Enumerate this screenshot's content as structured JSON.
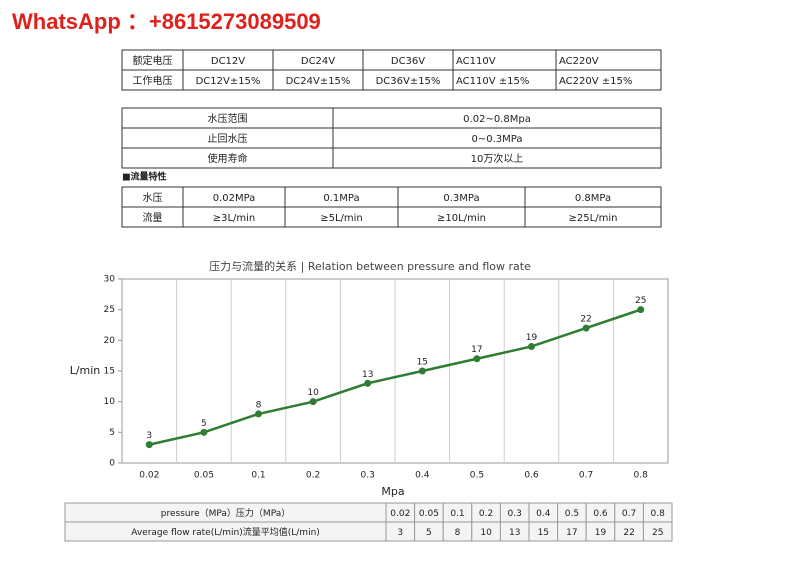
{
  "header": {
    "title": "WhatsApp ：+8615273089509"
  },
  "spec_table": {
    "rows": [
      [
        "额定电压",
        "DC12V",
        "DC24V",
        "DC36V",
        "AC110V",
        "AC220V"
      ],
      [
        "工作电压",
        "DC12V±15%",
        "DC24V±15%",
        "DC36V±15%",
        "AC110V ±15%",
        "AC220V ±15%"
      ]
    ]
  },
  "range_table": {
    "rows": [
      [
        "水压范围",
        "0.02~0.8Mpa"
      ],
      [
        "止回水压",
        "0~0.3MPa"
      ],
      [
        "使用寿命",
        "10万次以上"
      ]
    ]
  },
  "flow_heading": "■流量特性",
  "flow_table": {
    "rows": [
      [
        "水压",
        "0.02MPa",
        "0.1MPa",
        "0.3MPa",
        "0.8MPa"
      ],
      [
        "流量",
        "≥3L/min",
        "≥5L/min",
        "≥10L/min",
        "≥25L/min"
      ]
    ]
  },
  "chart_data": {
    "type": "line",
    "title": "压力与流量的关系 | Relation between pressure and flow rate",
    "x_label": "Mpa",
    "y_label": "L/min",
    "categories": [
      "0.02",
      "0.05",
      "0.1",
      "0.2",
      "0.3",
      "0.4",
      "0.5",
      "0.6",
      "0.7",
      "0.8"
    ],
    "values": [
      3,
      5,
      8,
      10,
      13,
      15,
      17,
      19,
      22,
      25
    ],
    "color": "#2e7d32",
    "ylim": [
      0,
      30
    ],
    "yticks": [
      0,
      5,
      10,
      15,
      20,
      25,
      30
    ],
    "grid": true
  },
  "data_table": {
    "rows": [
      [
        "pressure（MPa）压力（MPa）",
        "0.02",
        "0.05",
        "0.1",
        "0.2",
        "0.3",
        "0.4",
        "0.5",
        "0.6",
        "0.7",
        "0.8"
      ],
      [
        "Average flow rate(L/min)流量平均值(L/min)",
        "3",
        "5",
        "8",
        "10",
        "13",
        "15",
        "17",
        "19",
        "22",
        "25"
      ]
    ]
  }
}
